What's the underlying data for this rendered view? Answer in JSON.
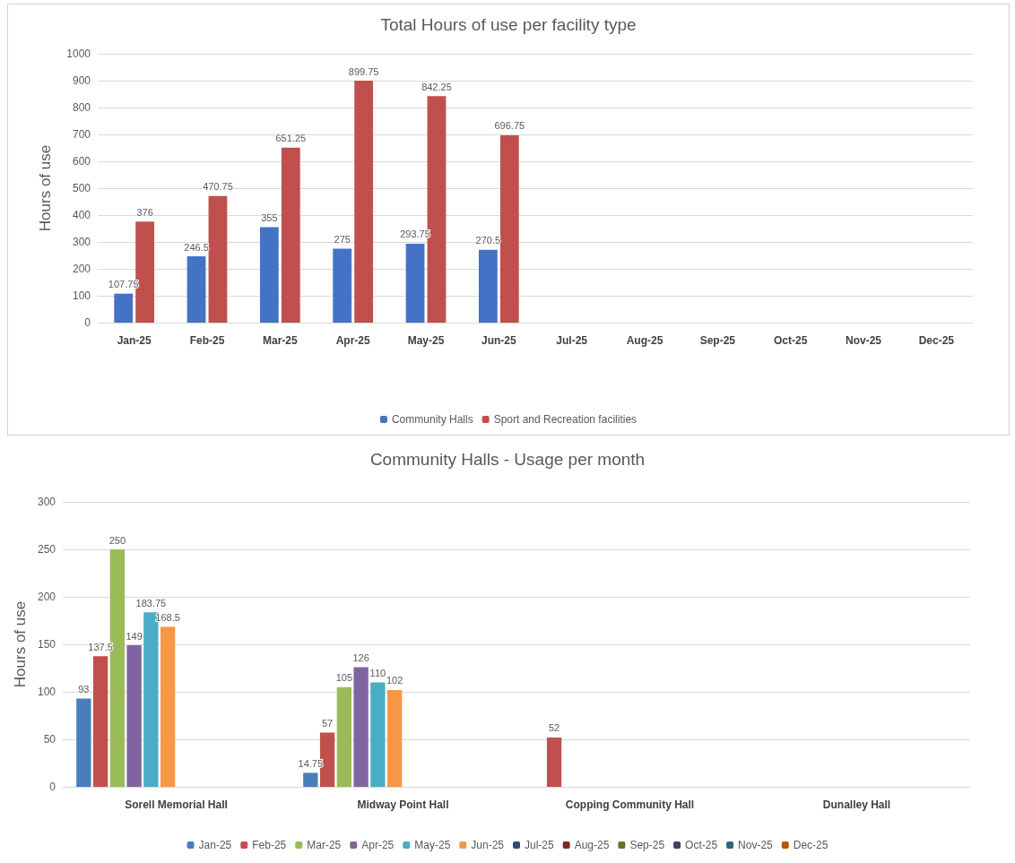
{
  "chart_data": [
    {
      "type": "bar",
      "title": "Total Hours of use per facility type",
      "ylabel": "Hours of use",
      "categories": [
        "Jan-25",
        "Feb-25",
        "Mar-25",
        "Apr-25",
        "May-25",
        "Jun-25",
        "Jul-25",
        "Aug-25",
        "Sep-25",
        "Oct-25",
        "Nov-25",
        "Dec-25"
      ],
      "series": [
        {
          "name": "Community Halls",
          "color": "#4472c4",
          "values": [
            107.75,
            246.5,
            355,
            275,
            293.75,
            270.5,
            null,
            null,
            null,
            null,
            null,
            null
          ]
        },
        {
          "name": "Sport and Recreation facilities",
          "color": "#c0504d",
          "values": [
            376,
            470.75,
            651.25,
            899.75,
            842.25,
            696.75,
            null,
            null,
            null,
            null,
            null,
            null
          ]
        }
      ],
      "ylim": [
        0,
        1000
      ],
      "yticks": [
        0,
        100,
        200,
        300,
        400,
        500,
        600,
        700,
        800,
        900,
        1000
      ],
      "grid": "y",
      "legend": "bottom",
      "data_labels": true
    },
    {
      "type": "bar",
      "title": "Community Halls - Usage per month",
      "ylabel": "Hours of use",
      "categories": [
        "Sorell Memorial Hall",
        "Midway Point Hall",
        "Copping Community Hall",
        "Dunalley Hall"
      ],
      "series": [
        {
          "name": "Jan-25",
          "color": "#4a7ebb",
          "values": [
            93,
            14.75,
            null,
            null
          ]
        },
        {
          "name": "Feb-25",
          "color": "#c0504d",
          "values": [
            137.5,
            57,
            52,
            null
          ]
        },
        {
          "name": "Mar-25",
          "color": "#9bbb59",
          "values": [
            250,
            105,
            null,
            null
          ]
        },
        {
          "name": "Apr-25",
          "color": "#8064a2",
          "values": [
            149,
            126,
            null,
            null
          ]
        },
        {
          "name": "May-25",
          "color": "#4bacc6",
          "values": [
            183.75,
            110,
            null,
            null
          ]
        },
        {
          "name": "Jun-25",
          "color": "#f79646",
          "values": [
            168.5,
            102,
            null,
            null
          ]
        },
        {
          "name": "Jul-25",
          "color": "#2c4d75",
          "values": [
            null,
            null,
            null,
            null
          ]
        },
        {
          "name": "Aug-25",
          "color": "#772c2a",
          "values": [
            null,
            null,
            null,
            null
          ]
        },
        {
          "name": "Sep-25",
          "color": "#5f7530",
          "values": [
            null,
            null,
            null,
            null
          ]
        },
        {
          "name": "Oct-25",
          "color": "#4d3b62",
          "values": [
            null,
            null,
            null,
            null
          ]
        },
        {
          "name": "Nov-25",
          "color": "#276a7c",
          "values": [
            null,
            null,
            null,
            null
          ]
        },
        {
          "name": "Dec-25",
          "color": "#b65708",
          "values": [
            null,
            null,
            null,
            null
          ]
        }
      ],
      "ylim": [
        0,
        300
      ],
      "yticks": [
        0,
        50,
        100,
        150,
        200,
        250,
        300
      ],
      "grid": "y",
      "legend": "bottom",
      "data_labels": true
    }
  ]
}
